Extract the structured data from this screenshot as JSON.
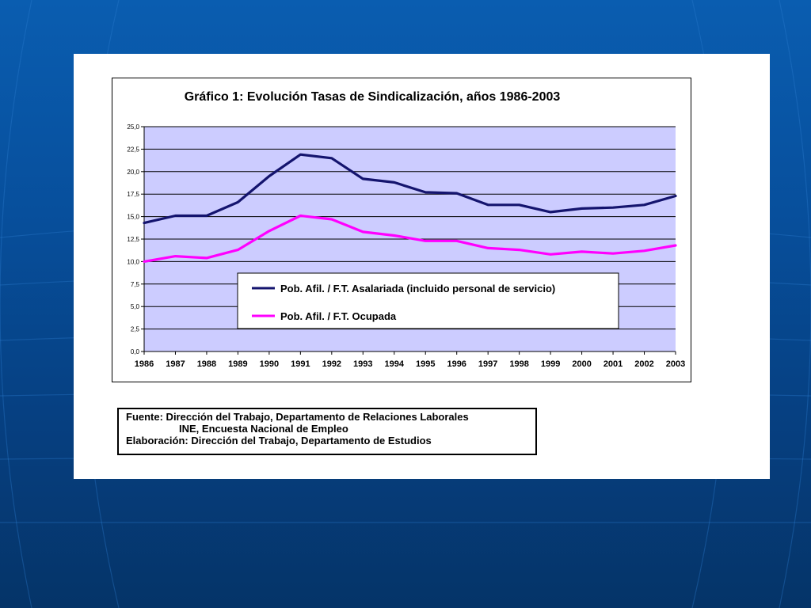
{
  "colors": {
    "background": "#0a5db0",
    "plot_area": "#ccccff",
    "series_asalariada": "#14146e",
    "series_ocupada": "#ff00ff"
  },
  "source_box": {
    "line1": "Fuente: Dirección del Trabajo, Departamento de Relaciones Laborales",
    "line2": "INE, Encuesta Nacional de Empleo",
    "line3": "Elaboración: Dirección del Trabajo, Departamento de Estudios"
  },
  "chart_data": {
    "type": "line",
    "title": "Gráfico 1: Evolución Tasas de Sindicalización, años 1986-2003",
    "xlabel": "",
    "ylabel": "",
    "x": [
      "1986",
      "1987",
      "1988",
      "1989",
      "1990",
      "1991",
      "1992",
      "1993",
      "1994",
      "1995",
      "1996",
      "1997",
      "1998",
      "1999",
      "2000",
      "2001",
      "2002",
      "2003"
    ],
    "y_ticks": [
      "0,0",
      "2,5",
      "5,0",
      "7,5",
      "10,0",
      "12,5",
      "15,0",
      "17,5",
      "20,0",
      "22,5",
      "25,0"
    ],
    "ylim": [
      0,
      25
    ],
    "grid": true,
    "legend_position": "bottom-center inside plot",
    "series": [
      {
        "name": "Pob. Afil. / F.T. Asalariada (incluido personal de servicio)",
        "color": "#14146e",
        "values": [
          14.3,
          15.1,
          15.1,
          16.6,
          19.5,
          21.9,
          21.5,
          19.2,
          18.8,
          17.7,
          17.6,
          16.3,
          16.3,
          15.5,
          15.9,
          16.0,
          16.3,
          17.3
        ]
      },
      {
        "name": "Pob. Afil. / F.T. Ocupada",
        "color": "#ff00ff",
        "values": [
          10.0,
          10.6,
          10.4,
          11.3,
          13.4,
          15.1,
          14.7,
          13.3,
          12.9,
          12.3,
          12.3,
          11.5,
          11.3,
          10.8,
          11.1,
          10.9,
          11.2,
          11.8
        ]
      }
    ]
  }
}
